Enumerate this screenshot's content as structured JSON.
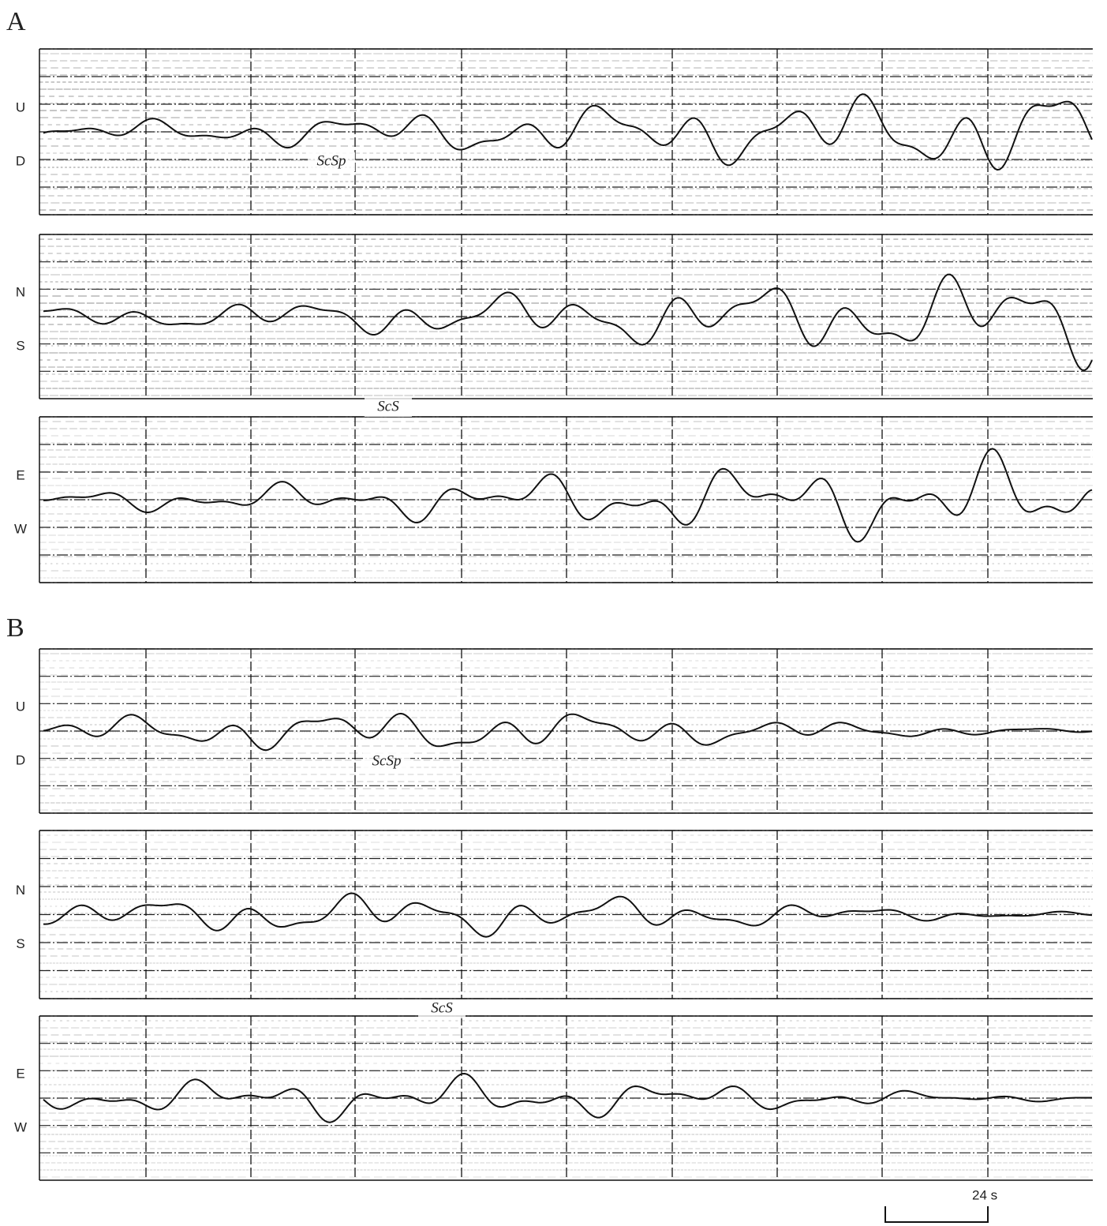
{
  "panels": [
    {
      "label": "A",
      "components": [
        {
          "top": "U",
          "bottom": "D",
          "phase": "ScSp"
        },
        {
          "top": "N",
          "bottom": "S"
        },
        {
          "top": "E",
          "bottom": "W",
          "phase": "ScS"
        }
      ]
    },
    {
      "label": "B",
      "components": [
        {
          "top": "U",
          "bottom": "D",
          "phase": "ScSp"
        },
        {
          "top": "N",
          "bottom": "S"
        },
        {
          "top": "E",
          "bottom": "W",
          "phase": "ScS"
        }
      ]
    }
  ],
  "scale_bar": "24 s"
}
